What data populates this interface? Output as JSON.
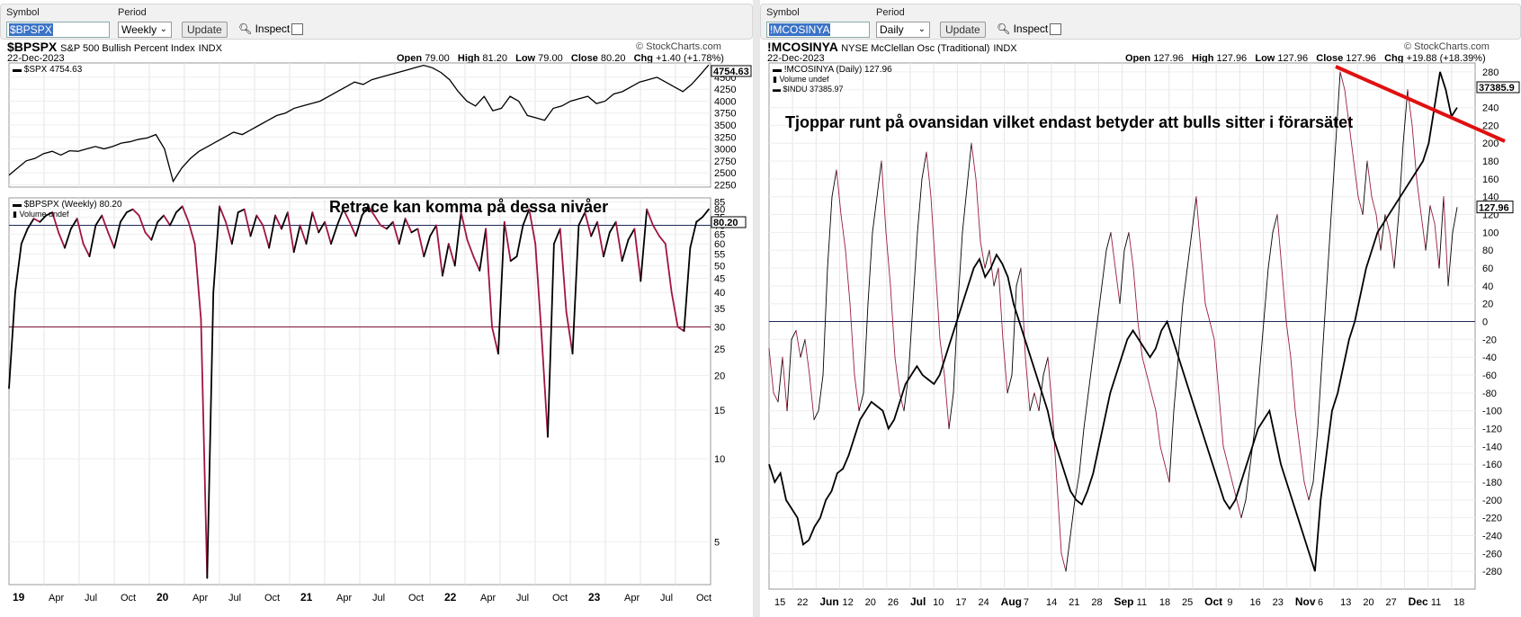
{
  "left": {
    "toolbar": {
      "symbol_label": "Symbol",
      "symbol_value": "$BPSPX",
      "period_label": "Period",
      "period_value": "Weekly",
      "update_label": "Update",
      "inspect_label": "Inspect"
    },
    "header": {
      "symbol": "$BPSPX",
      "name": "S&P 500 Bullish Percent Index",
      "exchange": "INDX",
      "date": "22-Dec-2023",
      "brand": "© StockCharts.com",
      "open_label": "Open",
      "open": "79.00",
      "high_label": "High",
      "high": "81.20",
      "low_label": "Low",
      "low": "79.00",
      "close_label": "Close",
      "close": "80.20",
      "chg_label": "Chg",
      "chg": "+1.40 (+1.78%)"
    }
  },
  "right": {
    "toolbar": {
      "symbol_label": "Symbol",
      "symbol_value": "!MCOSINYA",
      "period_label": "Period",
      "period_value": "Daily",
      "update_label": "Update",
      "inspect_label": "Inspect"
    },
    "header": {
      "symbol": "!MCOSINYA",
      "name": "NYSE McClellan Osc (Traditional)",
      "exchange": "INDX",
      "date": "22-Dec-2023",
      "brand": "© StockCharts.com",
      "open_label": "Open",
      "open": "127.96",
      "high_label": "High",
      "high": "127.96",
      "low_label": "Low",
      "low": "127.96",
      "close_label": "Close",
      "close": "127.96",
      "chg_label": "Chg",
      "chg": "+19.88 (+18.39%)"
    }
  },
  "chart_data": [
    {
      "type": "line",
      "panel": "left-upper",
      "legend": "$SPX 4754.63",
      "last_value_label": "4754.63",
      "y_ticks": [
        "4500",
        "4250",
        "4000",
        "3750",
        "3500",
        "3250",
        "3000",
        "2750",
        "2500",
        "2250"
      ],
      "ylim": [
        2200,
        4800
      ],
      "series": [
        {
          "name": "$SPX",
          "values": [
            2450,
            2600,
            2750,
            2800,
            2900,
            2950,
            2870,
            2960,
            2950,
            3000,
            3050,
            3000,
            3050,
            3120,
            3150,
            3200,
            3230,
            3300,
            3000,
            2320,
            2600,
            2800,
            2950,
            3050,
            3150,
            3250,
            3350,
            3300,
            3400,
            3500,
            3600,
            3700,
            3750,
            3850,
            3900,
            3950,
            4000,
            4100,
            4200,
            4300,
            4400,
            4350,
            4450,
            4500,
            4550,
            4600,
            4650,
            4700,
            4750,
            4700,
            4600,
            4450,
            4200,
            4000,
            3900,
            4100,
            3800,
            3850,
            4100,
            4000,
            3700,
            3650,
            3600,
            3850,
            3900,
            4000,
            4050,
            4100,
            3950,
            4000,
            4150,
            4200,
            4300,
            4400,
            4450,
            4500,
            4400,
            4300,
            4200,
            4350,
            4550,
            4760
          ]
        }
      ]
    },
    {
      "type": "line",
      "panel": "left-lower",
      "legend": "$BPSPX (Weekly) 80.20",
      "volume_legend": "Volume undef",
      "last_value_label": "80.20",
      "annotation": "Retrace kan komma på dessa nivåer",
      "y_scale": "log",
      "y_ticks": [
        "85",
        "80",
        "75",
        "70",
        "65",
        "60",
        "55",
        "50",
        "45",
        "40",
        "35",
        "30",
        "25",
        "20",
        "15",
        "10",
        "5"
      ],
      "ylim": [
        3.5,
        88
      ],
      "hlines": [
        70,
        30
      ],
      "x_ticks": [
        "19",
        "Apr",
        "Jul",
        "Oct",
        "20",
        "Apr",
        "Jul",
        "Oct",
        "21",
        "Apr",
        "Jul",
        "Oct",
        "22",
        "Apr",
        "Jul",
        "Oct",
        "23",
        "Apr",
        "Jul",
        "Oct"
      ],
      "series": [
        {
          "name": "$BPSPX",
          "values": [
            18,
            40,
            60,
            68,
            74,
            72,
            76,
            78,
            66,
            58,
            68,
            74,
            60,
            54,
            70,
            76,
            66,
            58,
            72,
            78,
            80,
            76,
            66,
            62,
            72,
            76,
            70,
            78,
            82,
            72,
            60,
            32,
            3.7,
            40,
            82,
            72,
            60,
            78,
            80,
            64,
            76,
            70,
            58,
            76,
            68,
            78,
            56,
            70,
            60,
            78,
            66,
            72,
            60,
            70,
            80,
            72,
            64,
            76,
            82,
            76,
            70,
            68,
            72,
            60,
            74,
            66,
            68,
            54,
            64,
            70,
            46,
            60,
            50,
            78,
            62,
            54,
            48,
            68,
            30,
            24,
            72,
            52,
            54,
            70,
            80,
            60,
            28,
            12,
            60,
            68,
            34,
            24,
            70,
            78,
            64,
            72,
            54,
            66,
            72,
            52,
            62,
            68,
            44,
            80,
            70,
            64,
            60,
            40,
            30,
            29,
            58,
            72,
            75,
            80
          ]
        }
      ]
    },
    {
      "type": "line",
      "panel": "right",
      "legend_1": "!MCOSINYA (Daily) 127.96",
      "volume_legend": "Volume undef",
      "legend_2": "$INDU 37385.97",
      "last_value_label": "127.96",
      "indu_value_label": "37385.9",
      "annotation": "Tjoppar runt på ovansidan vilket endast betyder att bulls sitter i förarsätet",
      "y_ticks": [
        "280",
        "260",
        "240",
        "220",
        "200",
        "180",
        "160",
        "140",
        "120",
        "100",
        "80",
        "60",
        "40",
        "20",
        "0",
        "-20",
        "-40",
        "-60",
        "-80",
        "-100",
        "-120",
        "-140",
        "-160",
        "-180",
        "-200",
        "-220",
        "-240",
        "-260",
        "-280"
      ],
      "ylim": [
        -300,
        290
      ],
      "x_ticks": [
        "15",
        "22",
        "Jun",
        "12",
        "20",
        "26",
        "Jul",
        "10",
        "17",
        "24",
        "Aug",
        "7",
        "14",
        "21",
        "28",
        "Sep",
        "11",
        "18",
        "25",
        "Oct",
        "9",
        "16",
        "23",
        "Nov",
        "6",
        "13",
        "20",
        "27",
        "Dec",
        "11",
        "18"
      ],
      "series": [
        {
          "name": "!MCOSINYA",
          "values": [
            -30,
            -80,
            -90,
            -40,
            -100,
            -20,
            -10,
            -40,
            -20,
            -60,
            -110,
            -100,
            -60,
            60,
            140,
            170,
            120,
            80,
            20,
            -60,
            -100,
            -80,
            20,
            100,
            140,
            180,
            100,
            40,
            -40,
            -80,
            -100,
            -60,
            20,
            100,
            160,
            190,
            140,
            60,
            -20,
            -60,
            -120,
            -80,
            20,
            100,
            150,
            200,
            160,
            90,
            60,
            80,
            40,
            60,
            -20,
            -80,
            -60,
            40,
            60,
            -40,
            -100,
            -80,
            -100,
            -60,
            -40,
            -100,
            -180,
            -260,
            -280,
            -240,
            -200,
            -170,
            -120,
            -80,
            -40,
            0,
            40,
            80,
            100,
            60,
            20,
            80,
            100,
            60,
            0,
            -40,
            -60,
            -80,
            -100,
            -140,
            -160,
            -180,
            -100,
            -40,
            20,
            60,
            100,
            140,
            80,
            20,
            0,
            -20,
            -80,
            -140,
            -160,
            -180,
            -200,
            -220,
            -200,
            -160,
            -120,
            -60,
            0,
            60,
            100,
            120,
            60,
            0,
            -40,
            -100,
            -140,
            -180,
            -200,
            -180,
            -120,
            -40,
            40,
            120,
            200,
            280,
            260,
            220,
            180,
            140,
            120,
            180,
            140,
            120,
            80,
            120,
            100,
            60,
            120,
            200,
            260,
            220,
            160,
            120,
            80,
            130,
            110,
            60,
            140,
            40,
            100,
            128
          ]
        },
        {
          "name": "$INDU",
          "values": [
            -160,
            -180,
            -170,
            -200,
            -210,
            -220,
            -250,
            -245,
            -230,
            -220,
            -200,
            -190,
            -170,
            -165,
            -150,
            -130,
            -110,
            -100,
            -90,
            -95,
            -100,
            -120,
            -110,
            -90,
            -70,
            -60,
            -50,
            -60,
            -65,
            -70,
            -60,
            -40,
            -20,
            0,
            20,
            40,
            60,
            70,
            50,
            60,
            75,
            65,
            50,
            20,
            0,
            -20,
            -40,
            -60,
            -80,
            -100,
            -130,
            -150,
            -170,
            -190,
            -200,
            -205,
            -190,
            -170,
            -140,
            -110,
            -80,
            -60,
            -40,
            -20,
            -10,
            -20,
            -30,
            -40,
            -30,
            -10,
            0,
            -20,
            -40,
            -60,
            -80,
            -100,
            -120,
            -140,
            -160,
            -180,
            -200,
            -210,
            -200,
            -180,
            -160,
            -140,
            -120,
            -110,
            -100,
            -130,
            -160,
            -180,
            -200,
            -220,
            -240,
            -260,
            -280,
            -200,
            -150,
            -100,
            -80,
            -50,
            -20,
            0,
            30,
            60,
            80,
            100,
            110,
            120,
            130,
            140,
            150,
            160,
            170,
            180,
            200,
            240,
            280,
            260,
            230,
            240
          ]
        }
      ]
    }
  ]
}
